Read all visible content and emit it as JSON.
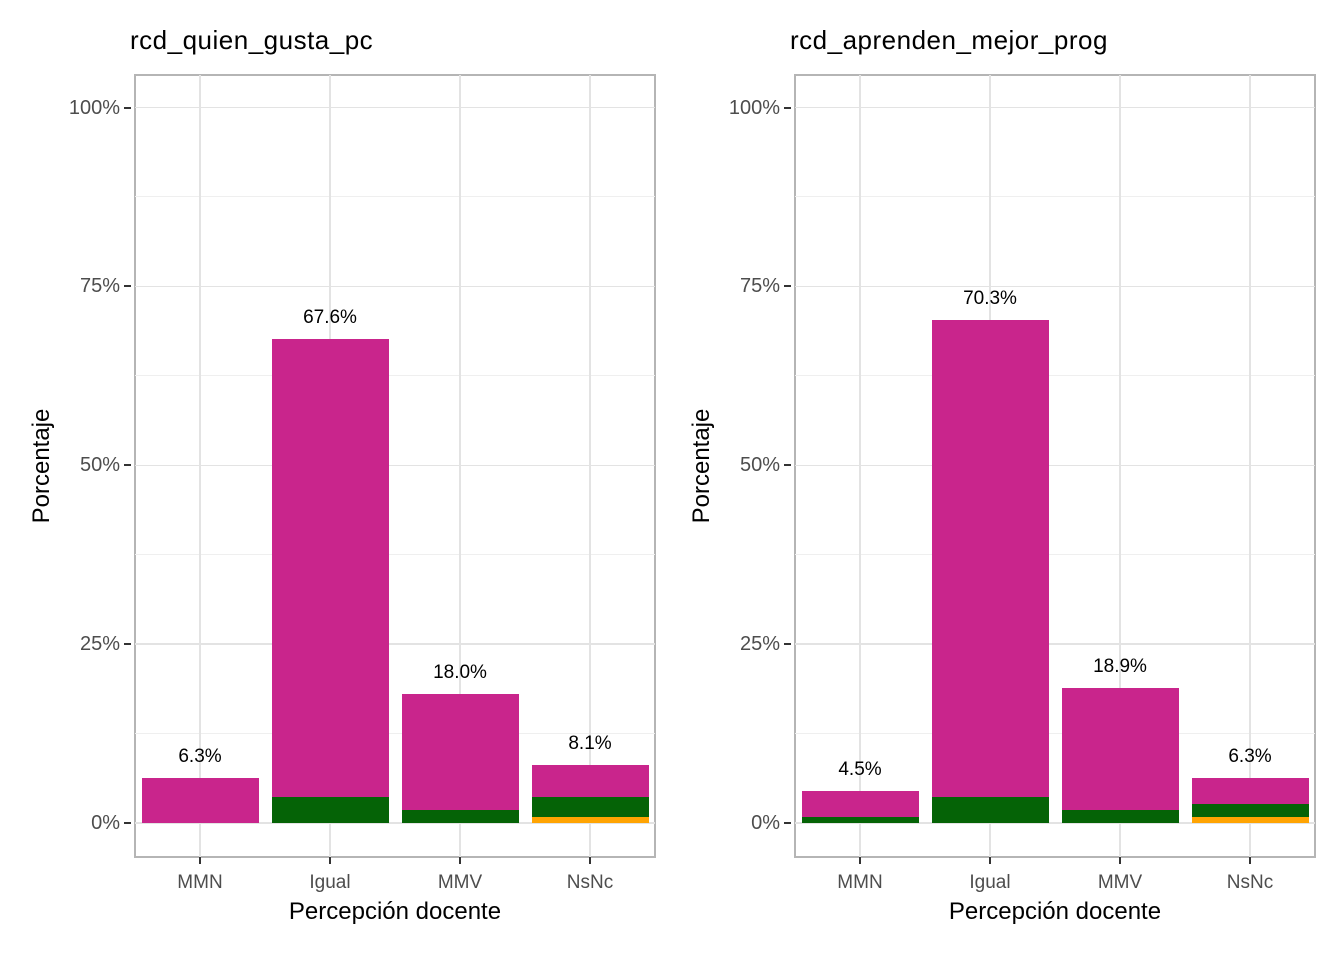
{
  "colors": {
    "magenta": "#C9258C",
    "green": "#056306",
    "orange": "#FFA402",
    "grid_major": "#E3E3E3",
    "grid_minor": "#EFEFEF",
    "panel_border": "#B5B5B5",
    "tick": "#333333",
    "axis_text": "#4D4D4D",
    "text": "#000000"
  },
  "chart_data": [
    {
      "type": "bar",
      "title": "rcd_quien_gusta_pc",
      "xlabel": "Percepción docente",
      "ylabel": "Porcentaje",
      "categories": [
        "MMN",
        "Igual",
        "MMV",
        "NsNc"
      ],
      "values": [
        6.3,
        67.6,
        18.0,
        8.1
      ],
      "bar_labels": [
        "6.3%",
        "67.6%",
        "18.0%",
        "8.1%"
      ],
      "bars": [
        {
          "category": "MMN",
          "total": 6.3,
          "label": "6.3%",
          "segments": [
            [
              "magenta",
              6.3
            ]
          ]
        },
        {
          "category": "Igual",
          "total": 67.6,
          "label": "67.6%",
          "segments": [
            [
              "green",
              3.6
            ],
            [
              "magenta",
              64.0
            ]
          ]
        },
        {
          "category": "MMV",
          "total": 18.0,
          "label": "18.0%",
          "segments": [
            [
              "green",
              1.8
            ],
            [
              "magenta",
              16.2
            ]
          ]
        },
        {
          "category": "NsNc",
          "total": 8.1,
          "label": "8.1%",
          "segments": [
            [
              "orange",
              0.9
            ],
            [
              "green",
              2.7
            ],
            [
              "magenta",
              4.5
            ]
          ]
        }
      ],
      "ylim": [
        0,
        100
      ],
      "ytick_labels": [
        "0%",
        "25%",
        "50%",
        "75%",
        "100%"
      ],
      "ytick_values": [
        0,
        25,
        50,
        75,
        100
      ],
      "yminor_values": [
        12.5,
        37.5,
        62.5,
        87.5
      ],
      "grid": "major+minor",
      "legend": "none"
    },
    {
      "type": "bar",
      "title": "rcd_aprenden_mejor_prog",
      "xlabel": "Percepción docente",
      "ylabel": "Porcentaje",
      "categories": [
        "MMN",
        "Igual",
        "MMV",
        "NsNc"
      ],
      "values": [
        4.5,
        70.3,
        18.9,
        6.3
      ],
      "bar_labels": [
        "4.5%",
        "70.3%",
        "18.9%",
        "6.3%"
      ],
      "bars": [
        {
          "category": "MMN",
          "total": 4.5,
          "label": "4.5%",
          "segments": [
            [
              "green",
              0.9
            ],
            [
              "magenta",
              3.6
            ]
          ]
        },
        {
          "category": "Igual",
          "total": 70.3,
          "label": "70.3%",
          "segments": [
            [
              "green",
              3.6
            ],
            [
              "magenta",
              66.7
            ]
          ]
        },
        {
          "category": "MMV",
          "total": 18.9,
          "label": "18.9%",
          "segments": [
            [
              "green",
              1.8
            ],
            [
              "magenta",
              17.1
            ]
          ]
        },
        {
          "category": "NsNc",
          "total": 6.3,
          "label": "6.3%",
          "segments": [
            [
              "orange",
              0.9
            ],
            [
              "green",
              1.8
            ],
            [
              "magenta",
              3.6
            ]
          ]
        }
      ],
      "ylim": [
        0,
        100
      ],
      "ytick_labels": [
        "0%",
        "25%",
        "50%",
        "75%",
        "100%"
      ],
      "ytick_values": [
        0,
        25,
        50,
        75,
        100
      ],
      "yminor_values": [
        12.5,
        37.5,
        62.5,
        87.5
      ],
      "grid": "major+minor",
      "legend": "none"
    }
  ]
}
